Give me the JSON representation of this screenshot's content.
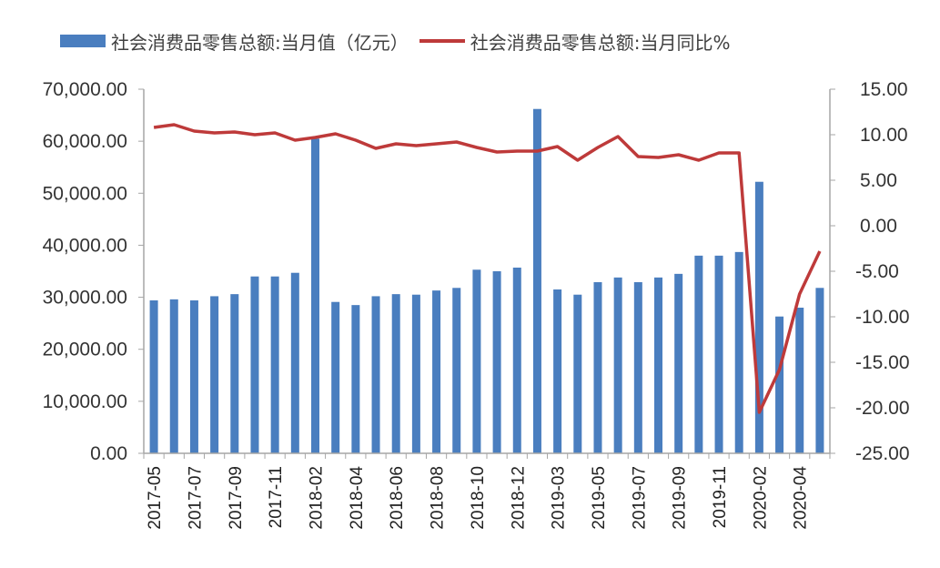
{
  "chart_data": {
    "type": "bar+line",
    "title": "",
    "legend": {
      "position": "top",
      "entries": [
        {
          "label": "社会消费品零售总额:当月值（亿元）",
          "type": "bar",
          "color": "#4a7ebf"
        },
        {
          "label": "社会消费品零售总额:当月同比%",
          "type": "line",
          "color": "#be3a3a"
        }
      ]
    },
    "categories": [
      "2017-05",
      "2017-06",
      "2017-07",
      "2017-08",
      "2017-09",
      "2017-10",
      "2017-11",
      "2017-12",
      "2018-02",
      "2018-03",
      "2018-04",
      "2018-05",
      "2018-06",
      "2018-07",
      "2018-08",
      "2018-09",
      "2018-10",
      "2018-11",
      "2018-12",
      "2019-02",
      "2019-03",
      "2019-04",
      "2019-05",
      "2019-06",
      "2019-07",
      "2019-08",
      "2019-09",
      "2019-10",
      "2019-11",
      "2019-12",
      "2020-02",
      "2020-03",
      "2020-04",
      "2020-05"
    ],
    "x_tick_labels_shown": [
      "2017-05",
      "2017-07",
      "2017-09",
      "2017-11",
      "2018-02",
      "2018-04",
      "2018-06",
      "2018-08",
      "2018-10",
      "2018-12",
      "2019-03",
      "2019-05",
      "2019-07",
      "2019-09",
      "2019-11",
      "2020-02",
      "2020-04"
    ],
    "series": [
      {
        "name": "社会消费品零售总额:当月值（亿元）",
        "type": "bar",
        "axis": "left",
        "color": "#4a7ebf",
        "values": [
          29400,
          29600,
          29400,
          30200,
          30600,
          34000,
          34000,
          34700,
          60500,
          29100,
          28500,
          30200,
          30600,
          30500,
          31300,
          31800,
          35300,
          35000,
          35700,
          66200,
          31500,
          30500,
          32900,
          33800,
          32900,
          33800,
          34500,
          38000,
          38000,
          38700,
          52200,
          26300,
          28000,
          31800
        ]
      },
      {
        "name": "社会消费品零售总额:当月同比%",
        "type": "line",
        "axis": "right",
        "color": "#be3a3a",
        "values": [
          10.8,
          11.1,
          10.4,
          10.2,
          10.3,
          10.0,
          10.2,
          9.4,
          9.7,
          10.1,
          9.4,
          8.5,
          9.0,
          8.8,
          9.0,
          9.2,
          8.6,
          8.1,
          8.2,
          8.2,
          8.7,
          7.2,
          8.6,
          9.8,
          7.6,
          7.5,
          7.8,
          7.2,
          8.0,
          8.0,
          -20.5,
          -15.8,
          -7.5,
          -2.8
        ]
      }
    ],
    "y_left": {
      "label": "",
      "min": 0,
      "max": 70000,
      "step": 10000,
      "tick_labels": [
        "0.00",
        "10,000.00",
        "20,000.00",
        "30,000.00",
        "40,000.00",
        "50,000.00",
        "60,000.00",
        "70,000.00"
      ]
    },
    "y_right": {
      "label": "",
      "min": -25,
      "max": 15,
      "step": 5,
      "tick_labels": [
        "-25.00",
        "-20.00",
        "-15.00",
        "-10.00",
        "-5.00",
        "0.00",
        "5.00",
        "10.00",
        "15.00"
      ]
    },
    "grid": false
  }
}
